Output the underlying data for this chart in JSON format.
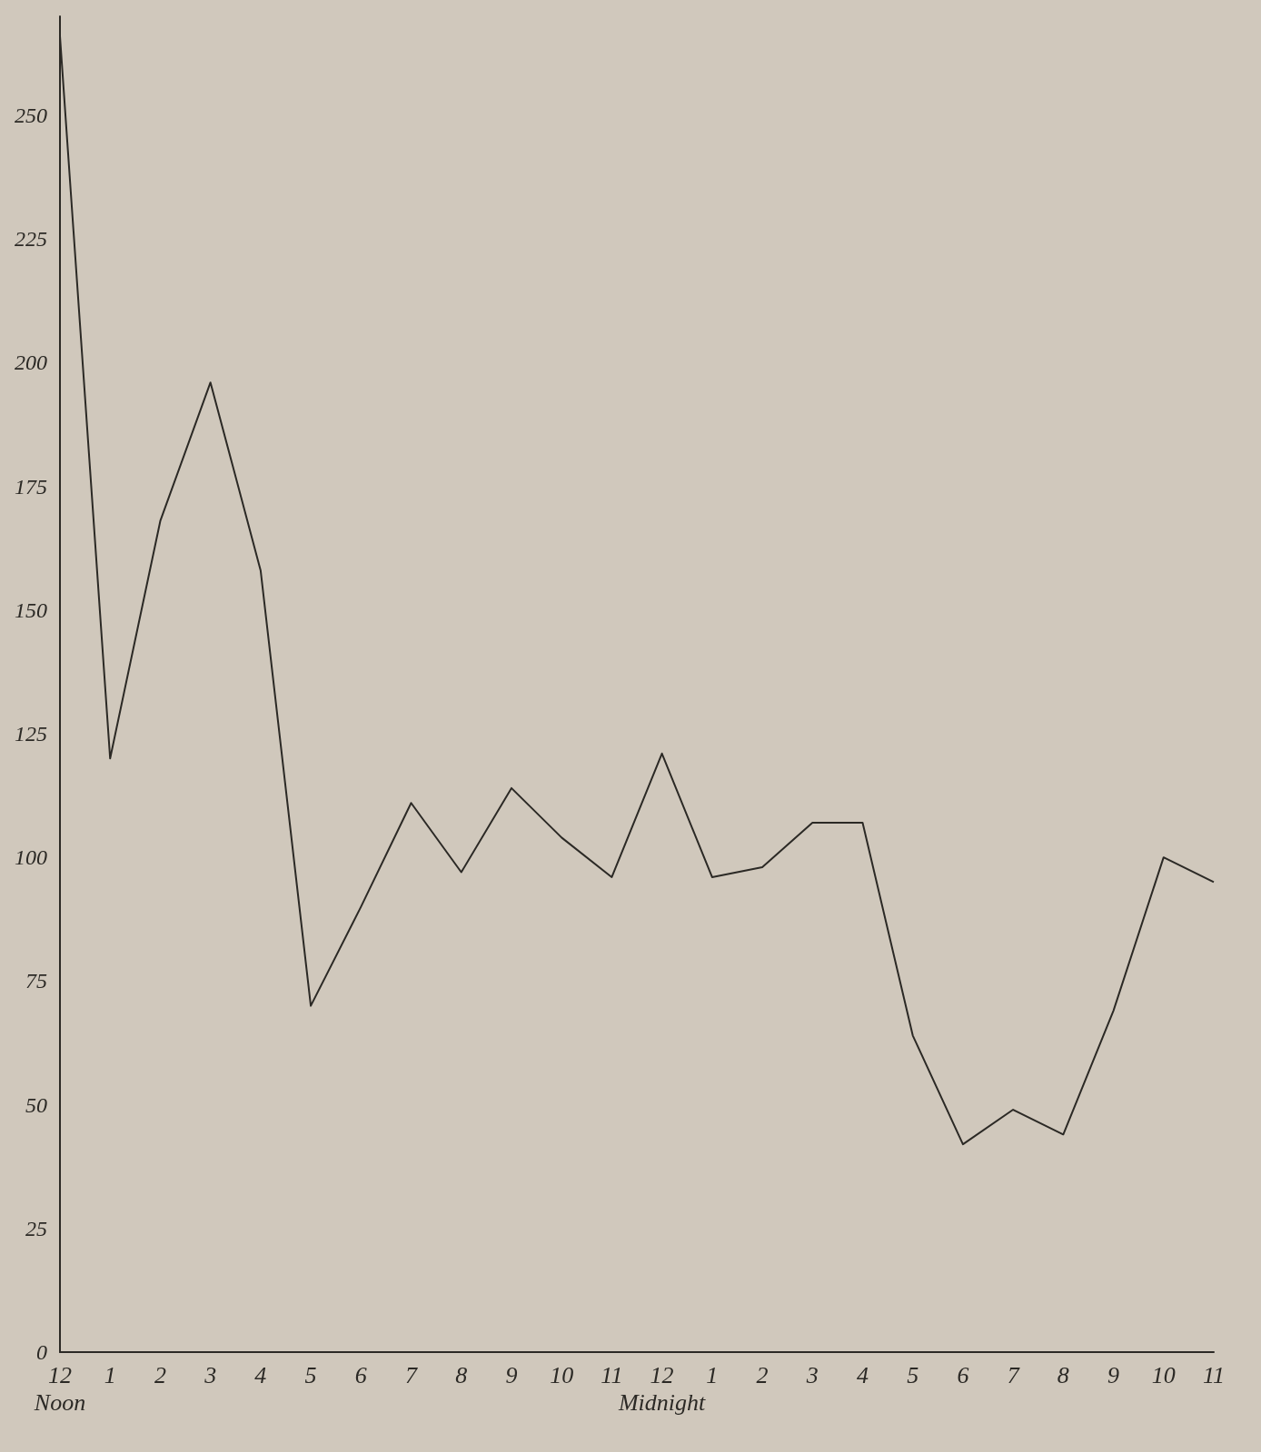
{
  "chart_data": {
    "type": "line",
    "categories": [
      "12\nNoon",
      "1",
      "2",
      "3",
      "4",
      "5",
      "6",
      "7",
      "8",
      "9",
      "10",
      "11",
      "12\nMidnight",
      "1",
      "2",
      "3",
      "4",
      "5",
      "6",
      "7",
      "8",
      "9",
      "10",
      "11"
    ],
    "values": [
      266,
      120,
      168,
      196,
      158,
      70,
      90,
      111,
      97,
      114,
      104,
      96,
      121,
      96,
      98,
      107,
      107,
      64,
      42,
      49,
      44,
      69,
      100,
      95
    ],
    "color": "#2b2925",
    "ylim": [
      0,
      270
    ],
    "yticks": [
      0,
      25,
      50,
      75,
      100,
      125,
      150,
      175,
      200,
      225,
      250
    ],
    "grid": false,
    "marker": "none",
    "line_style": "solid"
  }
}
